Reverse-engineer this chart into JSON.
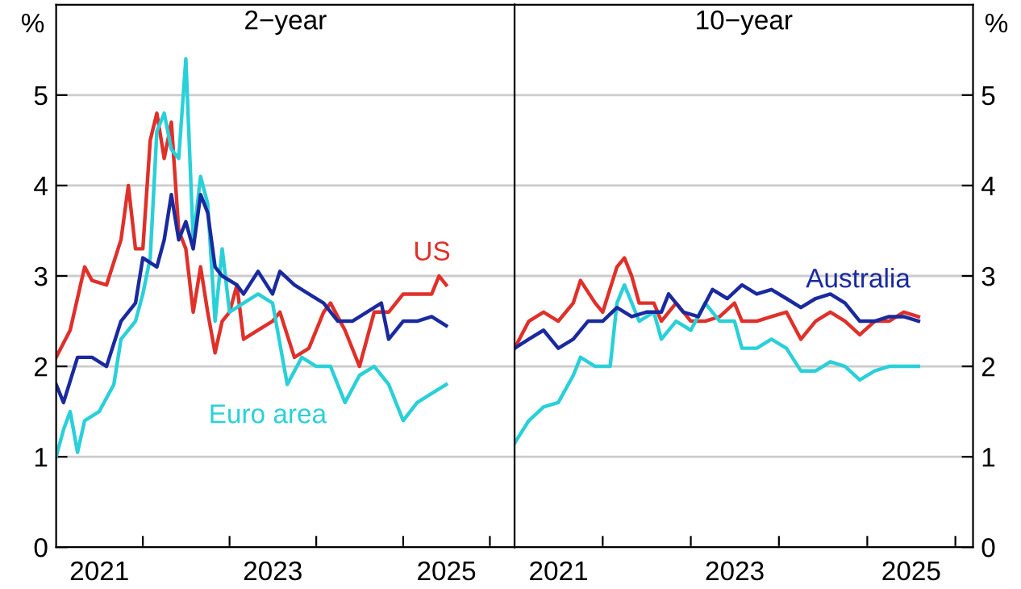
{
  "chart_data": [
    {
      "type": "line",
      "title": "2−year",
      "ylabel": "%",
      "xlim": [
        "2021-01-01",
        "2026-04-15"
      ],
      "ylim": [
        0,
        6
      ],
      "yticks": [
        0,
        1,
        2,
        3,
        4,
        5
      ],
      "grid": "y",
      "legend": false,
      "xticks": [
        {
          "value": "2021-07-02",
          "label": "2021"
        },
        {
          "value": "2022-01-01",
          "label": null
        },
        {
          "value": "2023-01-01",
          "label": null
        },
        {
          "value": "2023-07-02",
          "label": "2023"
        },
        {
          "value": "2024-01-01",
          "label": null
        },
        {
          "value": "2025-01-01",
          "label": null
        },
        {
          "value": "2025-07-02",
          "label": "2025"
        },
        {
          "value": "2026-01-01",
          "label": null
        }
      ],
      "series": [
        {
          "name": "US",
          "color": "#e0302a",
          "x": [
            "2021-01",
            "2021-03",
            "2021-05",
            "2021-06",
            "2021-08",
            "2021-10",
            "2021-11",
            "2021-12",
            "2022-01",
            "2022-02",
            "2022-03",
            "2022-04",
            "2022-05",
            "2022-06",
            "2022-07",
            "2022-08",
            "2022-09",
            "2022-10",
            "2022-11",
            "2022-12",
            "2023-01",
            "2023-02",
            "2023-03",
            "2023-05",
            "2023-07",
            "2023-08",
            "2023-10",
            "2023-12",
            "2024-02",
            "2024-03",
            "2024-05",
            "2024-07",
            "2024-09",
            "2024-11",
            "2025-01",
            "2025-03",
            "2025-05",
            "2025-06",
            "2025-07"
          ],
          "values": [
            2.1,
            2.4,
            3.1,
            2.95,
            2.9,
            3.4,
            4.0,
            3.3,
            3.3,
            4.5,
            4.8,
            4.3,
            4.7,
            3.5,
            3.3,
            2.6,
            3.1,
            2.6,
            2.15,
            2.5,
            2.6,
            2.9,
            2.3,
            2.4,
            2.5,
            2.6,
            2.1,
            2.2,
            2.6,
            2.7,
            2.4,
            2.0,
            2.6,
            2.6,
            2.8,
            2.8,
            2.8,
            3.0,
            2.9
          ]
        },
        {
          "name": "Euro area",
          "color": "#2ad0d8",
          "x": [
            "2021-01",
            "2021-02",
            "2021-03",
            "2021-04",
            "2021-05",
            "2021-07",
            "2021-09",
            "2021-10",
            "2021-12",
            "2022-01",
            "2022-02",
            "2022-03",
            "2022-04",
            "2022-05",
            "2022-06",
            "2022-07",
            "2022-08",
            "2022-09",
            "2022-10",
            "2022-11",
            "2022-12",
            "2023-01",
            "2023-03",
            "2023-05",
            "2023-07",
            "2023-09",
            "2023-11",
            "2024-01",
            "2024-03",
            "2024-05",
            "2024-07",
            "2024-09",
            "2024-11",
            "2025-01",
            "2025-03",
            "2025-05",
            "2025-07"
          ],
          "values": [
            1.0,
            1.3,
            1.5,
            1.05,
            1.4,
            1.5,
            1.8,
            2.3,
            2.5,
            2.8,
            3.2,
            4.6,
            4.8,
            4.4,
            4.3,
            5.4,
            3.4,
            4.1,
            3.8,
            2.5,
            3.3,
            2.6,
            2.7,
            2.8,
            2.7,
            1.8,
            2.1,
            2.0,
            2.0,
            1.6,
            1.9,
            2.0,
            1.8,
            1.4,
            1.6,
            1.7,
            1.8
          ]
        },
        {
          "color": "#1a2a9e",
          "x": [
            "2021-01",
            "2021-02",
            "2021-04",
            "2021-06",
            "2021-08",
            "2021-10",
            "2021-12",
            "2022-01",
            "2022-03",
            "2022-04",
            "2022-05",
            "2022-06",
            "2022-07",
            "2022-08",
            "2022-09",
            "2022-10",
            "2022-11",
            "2022-12",
            "2023-02",
            "2023-03",
            "2023-05",
            "2023-07",
            "2023-08",
            "2023-10",
            "2023-12",
            "2024-02",
            "2024-04",
            "2024-06",
            "2024-08",
            "2024-10",
            "2024-11",
            "2025-01",
            "2025-03",
            "2025-05",
            "2025-07"
          ],
          "values": [
            1.8,
            1.6,
            2.1,
            2.1,
            2.0,
            2.5,
            2.7,
            3.2,
            3.1,
            3.4,
            3.9,
            3.4,
            3.6,
            3.3,
            3.9,
            3.7,
            3.1,
            3.0,
            2.9,
            2.8,
            3.05,
            2.8,
            3.05,
            2.9,
            2.8,
            2.7,
            2.5,
            2.5,
            2.6,
            2.7,
            2.3,
            2.5,
            2.5,
            2.55,
            2.45
          ]
        }
      ]
    },
    {
      "type": "line",
      "title": "10−year",
      "ylabel": "%",
      "xlim": [
        "2021-01-01",
        "2026-03-15"
      ],
      "ylim": [
        0,
        6
      ],
      "yticks": [
        0,
        1,
        2,
        3,
        4,
        5
      ],
      "grid": "y",
      "legend": false,
      "xticks": [
        {
          "value": "2021-07-02",
          "label": "2021"
        },
        {
          "value": "2022-01-01",
          "label": null
        },
        {
          "value": "2023-01-01",
          "label": null
        },
        {
          "value": "2023-07-02",
          "label": "2023"
        },
        {
          "value": "2024-01-01",
          "label": null
        },
        {
          "value": "2025-01-01",
          "label": null
        },
        {
          "value": "2025-07-02",
          "label": "2025"
        },
        {
          "value": "2026-01-01",
          "label": null
        }
      ],
      "series": [
        {
          "color": "#e0302a",
          "x": [
            "2021-01",
            "2021-03",
            "2021-05",
            "2021-07",
            "2021-09",
            "2021-10",
            "2021-12",
            "2022-01",
            "2022-03",
            "2022-04",
            "2022-05",
            "2022-06",
            "2022-08",
            "2022-09",
            "2022-11",
            "2023-01",
            "2023-03",
            "2023-05",
            "2023-07",
            "2023-08",
            "2023-10",
            "2023-12",
            "2024-02",
            "2024-04",
            "2024-06",
            "2024-08",
            "2024-10",
            "2024-12",
            "2025-02",
            "2025-04",
            "2025-06",
            "2025-08"
          ],
          "values": [
            2.2,
            2.5,
            2.6,
            2.5,
            2.7,
            2.95,
            2.7,
            2.6,
            3.1,
            3.2,
            3.0,
            2.7,
            2.7,
            2.5,
            2.7,
            2.5,
            2.5,
            2.55,
            2.7,
            2.5,
            2.5,
            2.55,
            2.6,
            2.3,
            2.5,
            2.6,
            2.5,
            2.35,
            2.5,
            2.5,
            2.6,
            2.55
          ]
        },
        {
          "color": "#2ad0d8",
          "x": [
            "2021-01",
            "2021-03",
            "2021-05",
            "2021-07",
            "2021-09",
            "2021-10",
            "2021-12",
            "2022-02",
            "2022-03",
            "2022-04",
            "2022-06",
            "2022-08",
            "2022-09",
            "2022-11",
            "2023-01",
            "2023-03",
            "2023-05",
            "2023-07",
            "2023-08",
            "2023-10",
            "2023-12",
            "2024-02",
            "2024-04",
            "2024-06",
            "2024-08",
            "2024-10",
            "2024-12",
            "2025-02",
            "2025-04",
            "2025-06",
            "2025-08"
          ],
          "values": [
            1.15,
            1.4,
            1.55,
            1.6,
            1.9,
            2.1,
            2.0,
            2.0,
            2.7,
            2.9,
            2.5,
            2.6,
            2.3,
            2.5,
            2.4,
            2.7,
            2.5,
            2.5,
            2.2,
            2.2,
            2.3,
            2.2,
            1.95,
            1.95,
            2.05,
            2.0,
            1.85,
            1.95,
            2.0,
            2.0,
            2.0
          ]
        },
        {
          "name": "Australia",
          "color": "#1a2a9e",
          "x": [
            "2021-01",
            "2021-03",
            "2021-05",
            "2021-07",
            "2021-09",
            "2021-11",
            "2022-01",
            "2022-03",
            "2022-05",
            "2022-07",
            "2022-09",
            "2022-10",
            "2022-12",
            "2023-02",
            "2023-04",
            "2023-06",
            "2023-08",
            "2023-10",
            "2023-12",
            "2024-02",
            "2024-04",
            "2024-06",
            "2024-08",
            "2024-10",
            "2024-12",
            "2025-02",
            "2025-04",
            "2025-06",
            "2025-08"
          ],
          "values": [
            2.2,
            2.3,
            2.4,
            2.2,
            2.3,
            2.5,
            2.5,
            2.65,
            2.55,
            2.6,
            2.6,
            2.8,
            2.6,
            2.55,
            2.85,
            2.75,
            2.9,
            2.8,
            2.85,
            2.75,
            2.65,
            2.75,
            2.8,
            2.7,
            2.5,
            2.5,
            2.55,
            2.55,
            2.5
          ]
        }
      ]
    }
  ]
}
